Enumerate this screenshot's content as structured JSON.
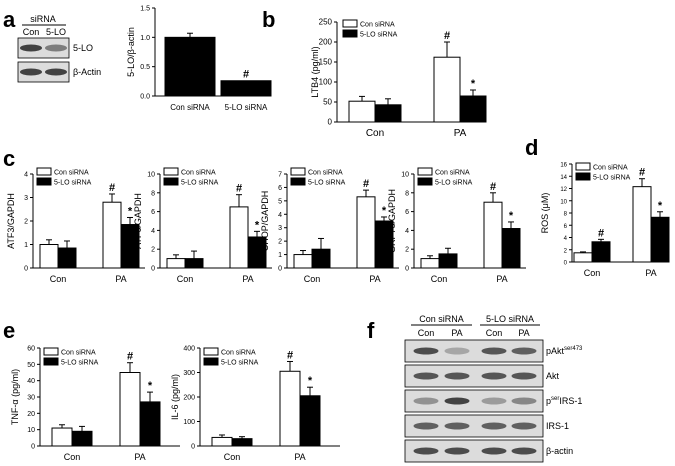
{
  "colors": {
    "control_fill": "#ffffff",
    "knockdown_fill": "#000000",
    "axis": "#000000",
    "blot_bg": "#dcdcdc",
    "blot_band": "#2a2a2a"
  },
  "panels": {
    "a": {
      "letter": "a",
      "blot": {
        "header": "siRNA",
        "lanes": [
          "Con",
          "5-LO"
        ],
        "rows": [
          {
            "label": "5-LO",
            "intensity": [
              0.85,
              0.55
            ]
          },
          {
            "label": "β-Actin",
            "intensity": [
              0.85,
              0.85
            ]
          }
        ]
      }
    },
    "b": {
      "letter": "b"
    },
    "c": {
      "letter": "c"
    },
    "d": {
      "letter": "d"
    },
    "e": {
      "letter": "e"
    },
    "f": {
      "letter": "f",
      "groups": [
        "Con siRNA",
        "5-LO siRNA"
      ],
      "lanes": [
        "Con",
        "PA",
        "Con",
        "PA"
      ],
      "rows": [
        {
          "label_main": "pAkt",
          "label_sup": "ser473",
          "label_pre": "",
          "label_post": "",
          "intensity": [
            0.8,
            0.35,
            0.75,
            0.7
          ]
        },
        {
          "label_main": "Akt",
          "label_sup": "",
          "label_pre": "",
          "label_post": "",
          "intensity": [
            0.75,
            0.75,
            0.75,
            0.75
          ]
        },
        {
          "label_main": "",
          "label_sup": "ser",
          "label_pre": "p",
          "label_post": "IRS-1",
          "intensity": [
            0.45,
            0.85,
            0.4,
            0.5
          ]
        },
        {
          "label_main": "IRS-1",
          "label_sup": "",
          "label_pre": "",
          "label_post": "",
          "intensity": [
            0.7,
            0.7,
            0.7,
            0.7
          ]
        },
        {
          "label_main": "β-actin",
          "label_sup": "",
          "label_pre": "",
          "label_post": "",
          "intensity": [
            0.8,
            0.8,
            0.8,
            0.8
          ]
        }
      ]
    }
  },
  "chart_data": [
    {
      "id": "a-bar",
      "type": "bar",
      "ylabel": "5-LO/β-actin",
      "ylim": [
        0,
        1.5
      ],
      "yticks": [
        "0.0",
        "0.5",
        "1.0",
        "1.5"
      ],
      "categories": [
        "Con siRNA",
        "5-LO siRNA"
      ],
      "series": [
        {
          "values": [
            1.0,
            0.26
          ],
          "errors": [
            0.07,
            0.0
          ],
          "fill": "#000000",
          "marks": [
            "",
            "#"
          ]
        }
      ]
    },
    {
      "id": "b",
      "type": "bar",
      "ylabel": "LTB4 (pg/ml)",
      "ylim": [
        0,
        250
      ],
      "yticks": [
        "0",
        "50",
        "100",
        "150",
        "200",
        "250"
      ],
      "categories": [
        "Con",
        "PA"
      ],
      "legend": [
        "Con siRNA",
        "5-LO siRNA"
      ],
      "series": [
        {
          "name": "Con siRNA",
          "values": [
            52,
            162
          ],
          "errors": [
            12,
            38
          ],
          "fill": "#ffffff",
          "marks": [
            "",
            "#"
          ]
        },
        {
          "name": "5-LO siRNA",
          "values": [
            43,
            65
          ],
          "errors": [
            15,
            15
          ],
          "fill": "#000000",
          "marks": [
            "",
            "*"
          ]
        }
      ]
    },
    {
      "id": "c1",
      "type": "bar",
      "ylabel": "ATF3/GAPDH",
      "ylim": [
        0,
        4
      ],
      "yticks": [
        "0",
        "1",
        "2",
        "3",
        "4"
      ],
      "categories": [
        "Con",
        "PA"
      ],
      "legend": [
        "Con siRNA",
        "5-LO siRNA"
      ],
      "series": [
        {
          "name": "Con siRNA",
          "values": [
            1.0,
            2.8
          ],
          "errors": [
            0.2,
            0.35
          ],
          "fill": "#ffffff",
          "marks": [
            "",
            "#"
          ]
        },
        {
          "name": "5-LO siRNA",
          "values": [
            0.85,
            1.85
          ],
          "errors": [
            0.3,
            0.3
          ],
          "fill": "#000000",
          "marks": [
            "",
            "*"
          ]
        }
      ]
    },
    {
      "id": "c2",
      "type": "bar",
      "ylabel": "ATF6/GAPDH",
      "ylim": [
        0,
        10
      ],
      "yticks": [
        "0",
        "2",
        "4",
        "6",
        "8",
        "10"
      ],
      "categories": [
        "Con",
        "PA"
      ],
      "legend": [
        "Con siRNA",
        "5-LO siRNA"
      ],
      "series": [
        {
          "name": "Con siRNA",
          "values": [
            1.0,
            6.5
          ],
          "errors": [
            0.4,
            1.3
          ],
          "fill": "#ffffff",
          "marks": [
            "",
            "#"
          ]
        },
        {
          "name": "5-LO siRNA",
          "values": [
            1.0,
            3.3
          ],
          "errors": [
            0.8,
            0.6
          ],
          "fill": "#000000",
          "marks": [
            "",
            "*"
          ]
        }
      ]
    },
    {
      "id": "c3",
      "type": "bar",
      "ylabel": "CHOP/GAPDH",
      "ylim": [
        0,
        7
      ],
      "yticks": [
        "0",
        "1",
        "2",
        "3",
        "4",
        "5",
        "6",
        "7"
      ],
      "categories": [
        "Con",
        "PA"
      ],
      "legend": [
        "Con siRNA",
        "5-LO siRNA"
      ],
      "series": [
        {
          "name": "Con siRNA",
          "values": [
            1.0,
            5.3
          ],
          "errors": [
            0.3,
            0.5
          ],
          "fill": "#ffffff",
          "marks": [
            "",
            "#"
          ]
        },
        {
          "name": "5-LO siRNA",
          "values": [
            1.4,
            3.5
          ],
          "errors": [
            0.8,
            0.3
          ],
          "fill": "#000000",
          "marks": [
            "",
            "*"
          ]
        }
      ]
    },
    {
      "id": "c4",
      "type": "bar",
      "ylabel": "GRP78/GAPDH",
      "ylim": [
        0,
        10
      ],
      "yticks": [
        "0",
        "2",
        "4",
        "6",
        "8",
        "10"
      ],
      "categories": [
        "Con",
        "PA"
      ],
      "legend": [
        "Con siRNA",
        "5-LO siRNA"
      ],
      "series": [
        {
          "name": "Con siRNA",
          "values": [
            1.0,
            7.0
          ],
          "errors": [
            0.3,
            1.0
          ],
          "fill": "#ffffff",
          "marks": [
            "",
            "#"
          ]
        },
        {
          "name": "5-LO siRNA",
          "values": [
            1.5,
            4.2
          ],
          "errors": [
            0.6,
            0.7
          ],
          "fill": "#000000",
          "marks": [
            "",
            "*"
          ]
        }
      ]
    },
    {
      "id": "d",
      "type": "bar",
      "ylabel": "ROS (μM)",
      "ylim": [
        0,
        16
      ],
      "yticks": [
        "0",
        "2",
        "4",
        "6",
        "8",
        "10",
        "12",
        "14",
        "16"
      ],
      "categories": [
        "Con",
        "PA"
      ],
      "legend": [
        "Con siRNA",
        "5-LO siRNA"
      ],
      "series": [
        {
          "name": "Con siRNA",
          "values": [
            1.5,
            12.3
          ],
          "errors": [
            0.15,
            1.3
          ],
          "fill": "#ffffff",
          "marks": [
            "",
            "#"
          ]
        },
        {
          "name": "5-LO siRNA",
          "values": [
            3.3,
            7.3
          ],
          "errors": [
            0.4,
            0.9
          ],
          "fill": "#000000",
          "marks": [
            "#",
            "*"
          ]
        }
      ]
    },
    {
      "id": "e1",
      "type": "bar",
      "ylabel": "TNF-α (pg/ml)",
      "ylim": [
        0,
        60
      ],
      "yticks": [
        "0",
        "10",
        "20",
        "30",
        "40",
        "50",
        "60"
      ],
      "categories": [
        "Con",
        "PA"
      ],
      "legend": [
        "Con siRNA",
        "5-LO siRNA"
      ],
      "series": [
        {
          "name": "Con siRNA",
          "values": [
            11,
            45
          ],
          "errors": [
            2,
            6
          ],
          "fill": "#ffffff",
          "marks": [
            "",
            "#"
          ]
        },
        {
          "name": "5-LO siRNA",
          "values": [
            9,
            27
          ],
          "errors": [
            3,
            6
          ],
          "fill": "#000000",
          "marks": [
            "",
            "*"
          ]
        }
      ]
    },
    {
      "id": "e2",
      "type": "bar",
      "ylabel": "IL-6 (pg/ml)",
      "ylim": [
        0,
        400
      ],
      "yticks": [
        "0",
        "100",
        "200",
        "300",
        "400"
      ],
      "categories": [
        "Con",
        "PA"
      ],
      "legend": [
        "Con siRNA",
        "5-LO siRNA"
      ],
      "series": [
        {
          "name": "Con siRNA",
          "values": [
            35,
            305
          ],
          "errors": [
            10,
            40
          ],
          "fill": "#ffffff",
          "marks": [
            "",
            "#"
          ]
        },
        {
          "name": "5-LO siRNA",
          "values": [
            30,
            205
          ],
          "errors": [
            8,
            35
          ],
          "fill": "#000000",
          "marks": [
            "",
            "*"
          ]
        }
      ]
    }
  ]
}
